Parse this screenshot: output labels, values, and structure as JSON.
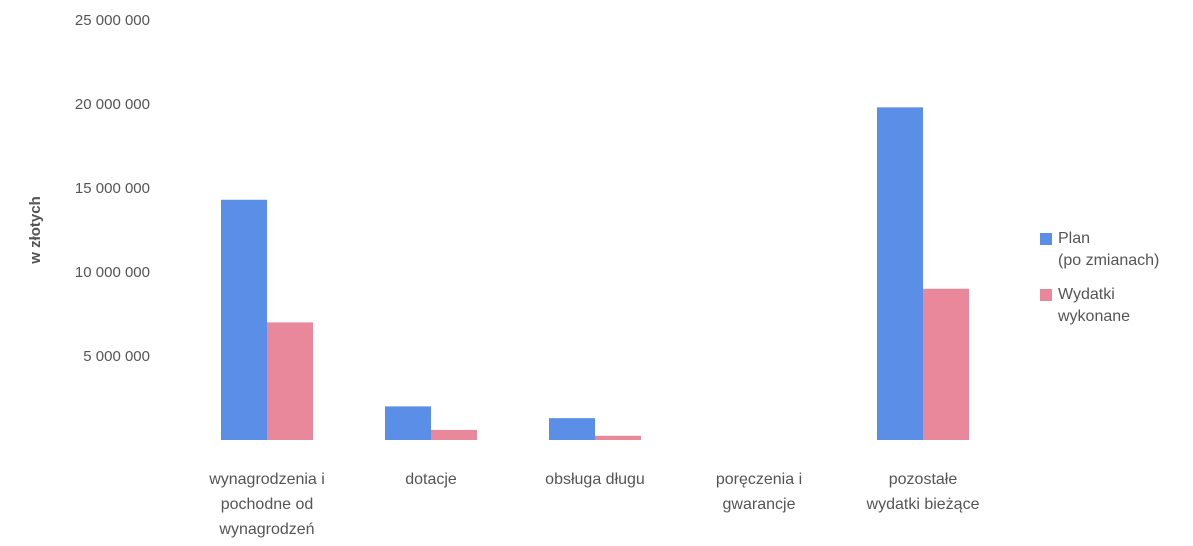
{
  "chart_data": {
    "type": "bar",
    "title": "",
    "xlabel": "",
    "ylabel": "w złotych",
    "ylim": [
      0,
      25000000
    ],
    "yticks": [
      {
        "value": 0,
        "label": ""
      },
      {
        "value": 5000000,
        "label": "5 000 000"
      },
      {
        "value": 10000000,
        "label": "10 000 000"
      },
      {
        "value": 15000000,
        "label": "15 000 000"
      },
      {
        "value": 20000000,
        "label": "20 000 000"
      },
      {
        "value": 25000000,
        "label": "25 000 000"
      }
    ],
    "categories": [
      [
        "wynagrodzenia i",
        "pochodne od",
        "wynagrodzeń"
      ],
      [
        "dotacje"
      ],
      [
        "obsługa długu"
      ],
      [
        "poręczenia i",
        "gwarancje"
      ],
      [
        "pozostałe",
        "wydatki bieżące"
      ]
    ],
    "series": [
      {
        "name": "Plan\n(po zmianach)",
        "color": "#5b8ee6",
        "values": [
          14300000,
          2000000,
          1300000,
          0,
          19800000
        ]
      },
      {
        "name": "Wydatki\nwykonane",
        "color": "#e8889a",
        "values": [
          7000000,
          600000,
          250000,
          0,
          9000000
        ]
      }
    ],
    "legend_position": "right",
    "grid": false
  }
}
